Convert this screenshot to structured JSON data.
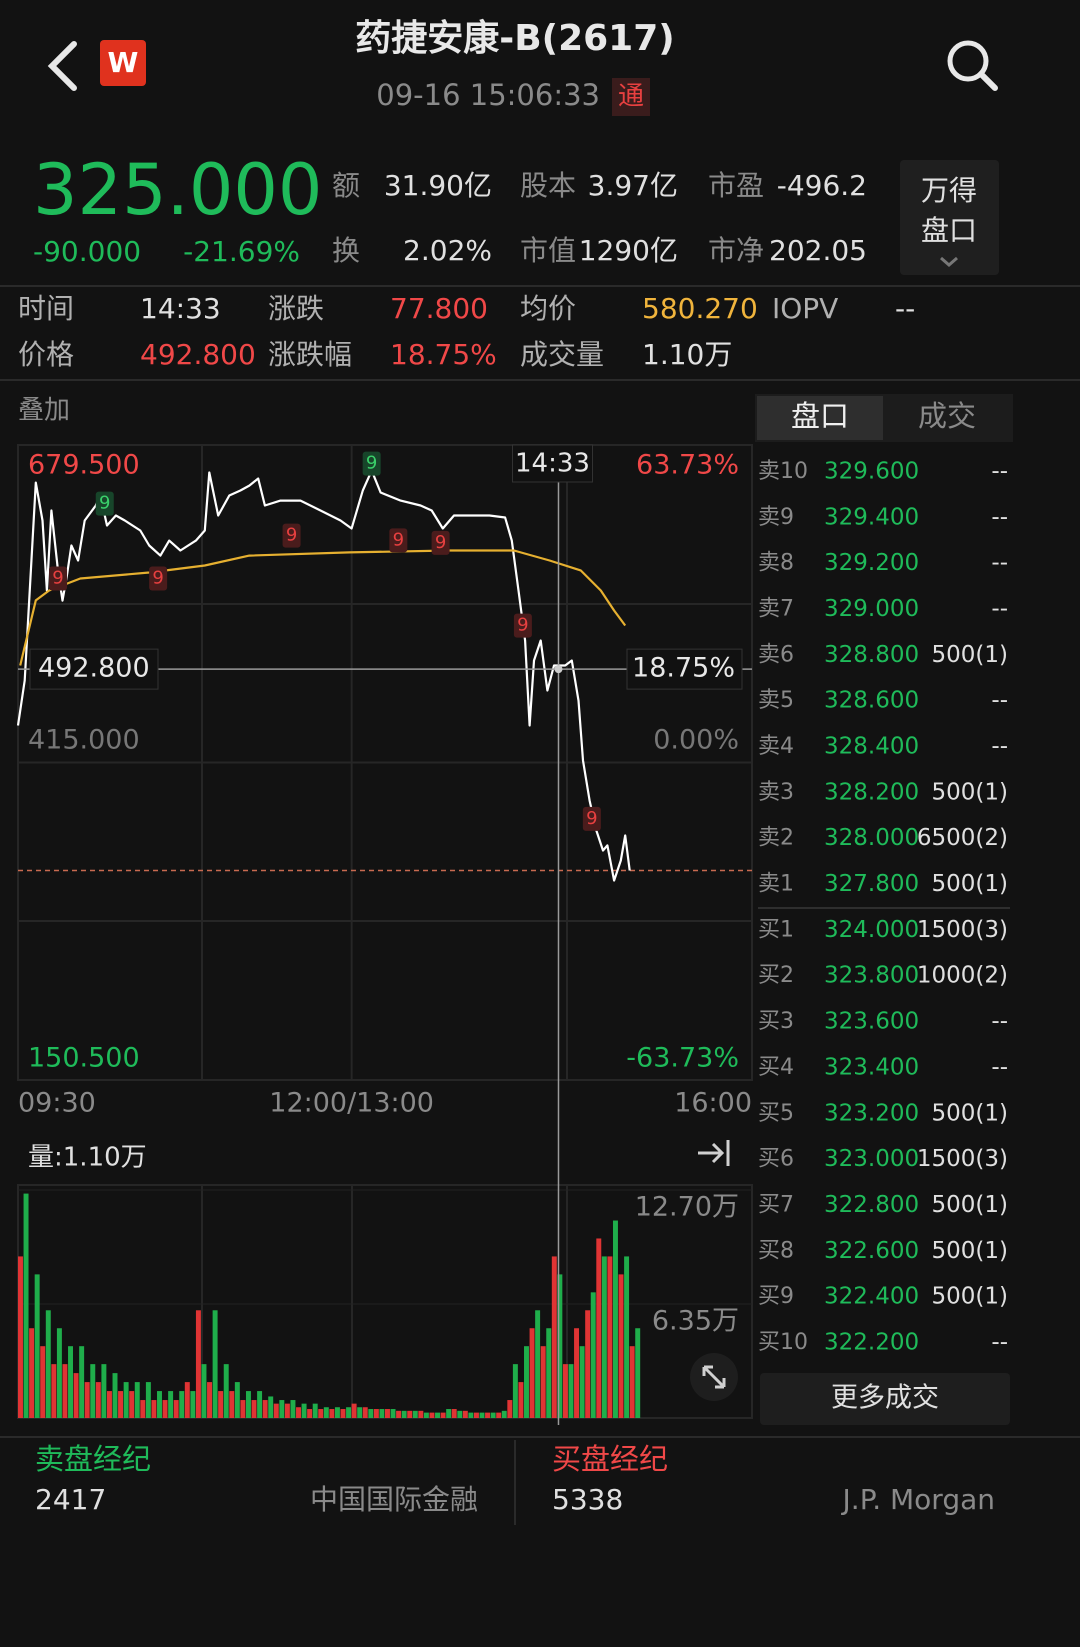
{
  "header": {
    "logo": "W",
    "title": "药捷安康-B(2617)",
    "datetime": "09-16 15:06:33",
    "connect_badge": "通"
  },
  "quote": {
    "price": {
      "value": 325,
      "label": "325.000"
    },
    "change": "-90.000",
    "change_pct": "-21.69%",
    "stats": [
      {
        "label": "额",
        "value": "31.90亿"
      },
      {
        "label": "股本",
        "value": "3.97亿"
      },
      {
        "label": "市盈",
        "value": "-496.2"
      },
      {
        "label": "换",
        "value": "2.02%"
      },
      {
        "label": "市值",
        "value": "1290亿"
      },
      {
        "label": "市净",
        "value": "202.05"
      }
    ],
    "wind_button": [
      "万得",
      "盘口"
    ]
  },
  "info": {
    "rows": [
      [
        {
          "label": "时间",
          "value": "14:33",
          "color": "#e0e0e0"
        },
        {
          "label": "涨跌",
          "value": "77.800",
          "color": "#f04848"
        },
        {
          "label": "均价",
          "value": "580.270",
          "color": "#f0b43c"
        },
        {
          "label": "IOPV",
          "value": "--",
          "color": "#e0e0e0"
        }
      ],
      [
        {
          "label": "价格",
          "value": "492.800",
          "color": "#f04848"
        },
        {
          "label": "涨跌幅",
          "value": "18.75%",
          "color": "#f04848"
        },
        {
          "label": "成交量",
          "value": "1.10万",
          "color": "#e0e0e0"
        }
      ]
    ]
  },
  "crosshair": {
    "minute": {
      "value": 243,
      "label": "14:33"
    },
    "price": {
      "value": 492.8,
      "label": "492.800"
    },
    "pct": {
      "value": 18.75,
      "label": "18.75%"
    }
  },
  "chart_data": [
    {
      "type": "line",
      "overlay_label": "叠加",
      "xlim": [
        0,
        330
      ],
      "xticks": [
        {
          "value": 0,
          "label": "09:30"
        },
        {
          "value": 150,
          "label": "12:00/13:00"
        },
        {
          "value": 330,
          "label": "16:00"
        }
      ],
      "ylim": [
        150.5,
        679.5
      ],
      "yticks": [
        {
          "value": 679.5,
          "label": "679.500"
        },
        {
          "value": 415,
          "label": "415.000"
        },
        {
          "value": 150.5,
          "label": "150.500"
        }
      ],
      "y2lim": [
        -63.73,
        63.73
      ],
      "y2ticks": [
        {
          "value": 63.73,
          "label": "63.73%"
        },
        {
          "value": 0,
          "label": "0.00%"
        },
        {
          "value": -63.73,
          "label": "-63.73%"
        }
      ],
      "series": [
        {
          "color": "#ffffff",
          "x": [
            0,
            3,
            8,
            11,
            13,
            15,
            18,
            20,
            22,
            24,
            27,
            30,
            35,
            37,
            40,
            44,
            48,
            55,
            59,
            64,
            68,
            73,
            80,
            84,
            86,
            90,
            95,
            100,
            104,
            108,
            111,
            118,
            127,
            136,
            145,
            150,
            155,
            159,
            163,
            172,
            181,
            186,
            191,
            196,
            203,
            212,
            219,
            222,
            225,
            228,
            230,
            232,
            235,
            238,
            241,
            246,
            249,
            252,
            254,
            257,
            260,
            263,
            265,
            268,
            271,
            273,
            275
          ],
          "values": [
            445.8,
            483.3,
            648.2,
            616.6,
            558.3,
            624.9,
            574.9,
            549.9,
            570.8,
            595.8,
            583.3,
            616.6,
            629.1,
            637.4,
            612.4,
            620.8,
            616.6,
            608.3,
            595.8,
            587.4,
            599.9,
            591.6,
            599.9,
            608.3,
            656.6,
            620.8,
            637.4,
            641.6,
            645.7,
            651.6,
            629.1,
            633.2,
            633.2,
            624.9,
            616.6,
            609.9,
            641.6,
            658.2,
            639.9,
            633.2,
            629.1,
            624.9,
            609.9,
            620.8,
            620.8,
            620.8,
            619.1,
            599.9,
            558.3,
            516.6,
            445.8,
            500,
            516.6,
            475,
            495.8,
            495.8,
            500,
            466.6,
            416.7,
            383.3,
            358.4,
            341.7,
            345.9,
            316.7,
            333.4,
            354.2,
            325
          ]
        },
        {
          "color": "#e6b030",
          "x": [
            1,
            8,
            14,
            28,
            59,
            84,
            104,
            149,
            194,
            223,
            239,
            253,
            262,
            268,
            273
          ],
          "values": [
            495.8,
            550,
            558.3,
            568.3,
            573.3,
            579.1,
            587.4,
            590,
            591.6,
            591.6,
            583.3,
            575,
            558.3,
            541.6,
            529.1
          ]
        }
      ],
      "markers": [
        {
          "label": "9",
          "minute": 18,
          "price": 568.3,
          "color": "red"
        },
        {
          "label": "9",
          "minute": 39,
          "price": 630.7,
          "color": "green"
        },
        {
          "label": "9",
          "minute": 63,
          "price": 568.3,
          "color": "red"
        },
        {
          "label": "9",
          "minute": 123,
          "price": 604,
          "color": "red"
        },
        {
          "label": "9",
          "minute": 159,
          "price": 664,
          "color": "green"
        },
        {
          "label": "9",
          "minute": 171,
          "price": 600,
          "color": "red"
        },
        {
          "label": "9",
          "minute": 190,
          "price": 598,
          "color": "red"
        },
        {
          "label": "9",
          "minute": 227,
          "price": 529,
          "color": "red"
        },
        {
          "label": "9",
          "minute": 258,
          "price": 368,
          "color": "red"
        }
      ]
    },
    {
      "type": "bar",
      "label": "量:1.10万",
      "xlim": [
        0,
        330
      ],
      "ylim": [
        0,
        12.7
      ],
      "yticks": [
        {
          "value": 12.7,
          "label": "12.70万"
        },
        {
          "value": 6.35,
          "label": "6.35万"
        }
      ],
      "x": [
        0,
        5,
        10,
        15,
        20,
        25,
        30,
        35,
        40,
        45,
        50,
        55,
        60,
        65,
        70,
        75,
        80,
        85,
        90,
        95,
        100,
        105,
        110,
        115,
        120,
        125,
        130,
        135,
        140,
        145,
        150,
        155,
        160,
        165,
        170,
        175,
        180,
        185,
        190,
        195,
        200,
        205,
        210,
        215,
        220,
        225,
        230,
        235,
        240,
        245,
        250,
        255,
        260,
        265,
        270,
        275
      ],
      "series": [
        {
          "color": "#e03434",
          "values": [
            9,
            5,
            4,
            3,
            3,
            2.5,
            2,
            2,
            1.5,
            1.5,
            1.5,
            1,
            1,
            1,
            1,
            2,
            6,
            2,
            1.5,
            1.5,
            1,
            1,
            1,
            0.8,
            0.8,
            0.6,
            0.5,
            0.5,
            0.5,
            0.5,
            0.8,
            0.6,
            0.5,
            0.5,
            0.4,
            0.4,
            0.4,
            0.3,
            0.3,
            0.5,
            0.4,
            0.3,
            0.3,
            0.3,
            1,
            2,
            5,
            4,
            9,
            3,
            5,
            6,
            10,
            9,
            8,
            4
          ]
        },
        {
          "color": "#1fae4b",
          "values": [
            12.5,
            8,
            6,
            5,
            4,
            4,
            3,
            3,
            2.5,
            2,
            2,
            2,
            1.5,
            1.5,
            1.5,
            1.5,
            3,
            6,
            3,
            2,
            1.5,
            1.5,
            1.2,
            1,
            1,
            0.8,
            0.8,
            0.6,
            0.6,
            0.6,
            0.6,
            0.5,
            0.5,
            0.5,
            0.4,
            0.4,
            0.3,
            0.3,
            0.5,
            0.4,
            0.3,
            0.3,
            0.3,
            0.4,
            3,
            4,
            6,
            5,
            8,
            3,
            4,
            7,
            9,
            11,
            9,
            5
          ]
        }
      ]
    }
  ],
  "order_book": {
    "tabs": [
      "盘口",
      "成交"
    ],
    "rows": [
      {
        "level": "卖10",
        "price": "329.600",
        "volume": "--"
      },
      {
        "level": "卖9",
        "price": "329.400",
        "volume": "--"
      },
      {
        "level": "卖8",
        "price": "329.200",
        "volume": "--"
      },
      {
        "level": "卖7",
        "price": "329.000",
        "volume": "--"
      },
      {
        "level": "卖6",
        "price": "328.800",
        "volume": "500(1)"
      },
      {
        "level": "卖5",
        "price": "328.600",
        "volume": "--"
      },
      {
        "level": "卖4",
        "price": "328.400",
        "volume": "--"
      },
      {
        "level": "卖3",
        "price": "328.200",
        "volume": "500(1)"
      },
      {
        "level": "卖2",
        "price": "328.000",
        "volume": "6500(2)"
      },
      {
        "level": "卖1",
        "price": "327.800",
        "volume": "500(1)"
      },
      {
        "level": "买1",
        "price": "324.000",
        "volume": "1500(3)"
      },
      {
        "level": "买2",
        "price": "323.800",
        "volume": "1000(2)"
      },
      {
        "level": "买3",
        "price": "323.600",
        "volume": "--"
      },
      {
        "level": "买4",
        "price": "323.400",
        "volume": "--"
      },
      {
        "level": "买5",
        "price": "323.200",
        "volume": "500(1)"
      },
      {
        "level": "买6",
        "price": "323.000",
        "volume": "1500(3)"
      },
      {
        "level": "买7",
        "price": "322.800",
        "volume": "500(1)"
      },
      {
        "level": "买8",
        "price": "322.600",
        "volume": "500(1)"
      },
      {
        "level": "买9",
        "price": "322.400",
        "volume": "500(1)"
      },
      {
        "level": "买10",
        "price": "322.200",
        "volume": "--"
      }
    ],
    "more_button": "更多成交"
  },
  "brokers": {
    "sell": {
      "title": "卖盘经纪",
      "id": "2417",
      "name": "中国国际金融"
    },
    "buy": {
      "title": "买盘经纪",
      "id": "5338",
      "name": "J.P. Morgan"
    }
  }
}
